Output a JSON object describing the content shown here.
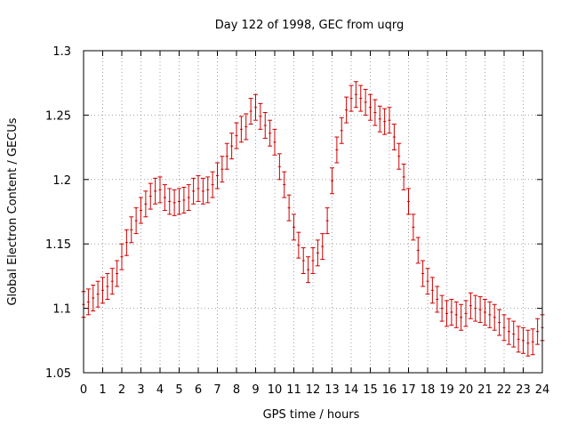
{
  "chart_data": {
    "type": "scatter",
    "title": "Day 122 of 1998, GEC from uqrg",
    "xlabel": "GPS time / hours",
    "ylabel": "Global Electron Content / GECUs",
    "xlim": [
      0,
      24
    ],
    "ylim": [
      1.05,
      1.3
    ],
    "grid": true,
    "x_ticks": [
      "0",
      "1",
      "2",
      "3",
      "4",
      "5",
      "6",
      "7",
      "8",
      "9",
      "10",
      "11",
      "12",
      "13",
      "14",
      "15",
      "16",
      "17",
      "18",
      "19",
      "20",
      "21",
      "22",
      "23",
      "24"
    ],
    "y_ticks": [
      "1.05",
      "1.1",
      "1.15",
      "1.2",
      "1.25",
      "1.3"
    ],
    "series": [
      {
        "name": "GEC",
        "color": "#cc0000",
        "error": 0.01,
        "x": [
          0,
          0.25,
          0.5,
          0.75,
          1,
          1.25,
          1.5,
          1.75,
          2,
          2.25,
          2.5,
          2.75,
          3,
          3.25,
          3.5,
          3.75,
          4,
          4.25,
          4.5,
          4.75,
          5,
          5.25,
          5.5,
          5.75,
          6,
          6.25,
          6.5,
          6.75,
          7,
          7.25,
          7.5,
          7.75,
          8,
          8.25,
          8.5,
          8.75,
          9,
          9.25,
          9.5,
          9.75,
          10,
          10.25,
          10.5,
          10.75,
          11,
          11.25,
          11.5,
          11.75,
          12,
          12.25,
          12.5,
          12.75,
          13,
          13.25,
          13.5,
          13.75,
          14,
          14.25,
          14.5,
          14.75,
          15,
          15.25,
          15.5,
          15.75,
          16,
          16.25,
          16.5,
          16.75,
          17,
          17.25,
          17.5,
          17.75,
          18,
          18.25,
          18.5,
          18.75,
          19,
          19.25,
          19.5,
          19.75,
          20,
          20.25,
          20.5,
          20.75,
          21,
          21.25,
          21.5,
          21.75,
          22,
          22.25,
          22.5,
          22.75,
          23,
          23.25,
          23.5,
          23.75,
          24
        ],
        "y": [
          1.103,
          1.105,
          1.108,
          1.111,
          1.114,
          1.117,
          1.121,
          1.127,
          1.14,
          1.151,
          1.161,
          1.168,
          1.176,
          1.181,
          1.187,
          1.191,
          1.192,
          1.186,
          1.183,
          1.182,
          1.183,
          1.184,
          1.186,
          1.191,
          1.193,
          1.191,
          1.192,
          1.196,
          1.203,
          1.208,
          1.218,
          1.226,
          1.234,
          1.239,
          1.241,
          1.253,
          1.256,
          1.249,
          1.242,
          1.236,
          1.229,
          1.21,
          1.196,
          1.178,
          1.163,
          1.149,
          1.137,
          1.13,
          1.137,
          1.143,
          1.148,
          1.168,
          1.199,
          1.223,
          1.238,
          1.254,
          1.263,
          1.266,
          1.263,
          1.26,
          1.256,
          1.252,
          1.247,
          1.245,
          1.246,
          1.233,
          1.218,
          1.202,
          1.183,
          1.163,
          1.145,
          1.127,
          1.121,
          1.114,
          1.107,
          1.1,
          1.096,
          1.097,
          1.095,
          1.093,
          1.096,
          1.102,
          1.1,
          1.099,
          1.097,
          1.095,
          1.093,
          1.089,
          1.085,
          1.082,
          1.08,
          1.076,
          1.075,
          1.073,
          1.074,
          1.082,
          1.085
        ]
      }
    ]
  }
}
